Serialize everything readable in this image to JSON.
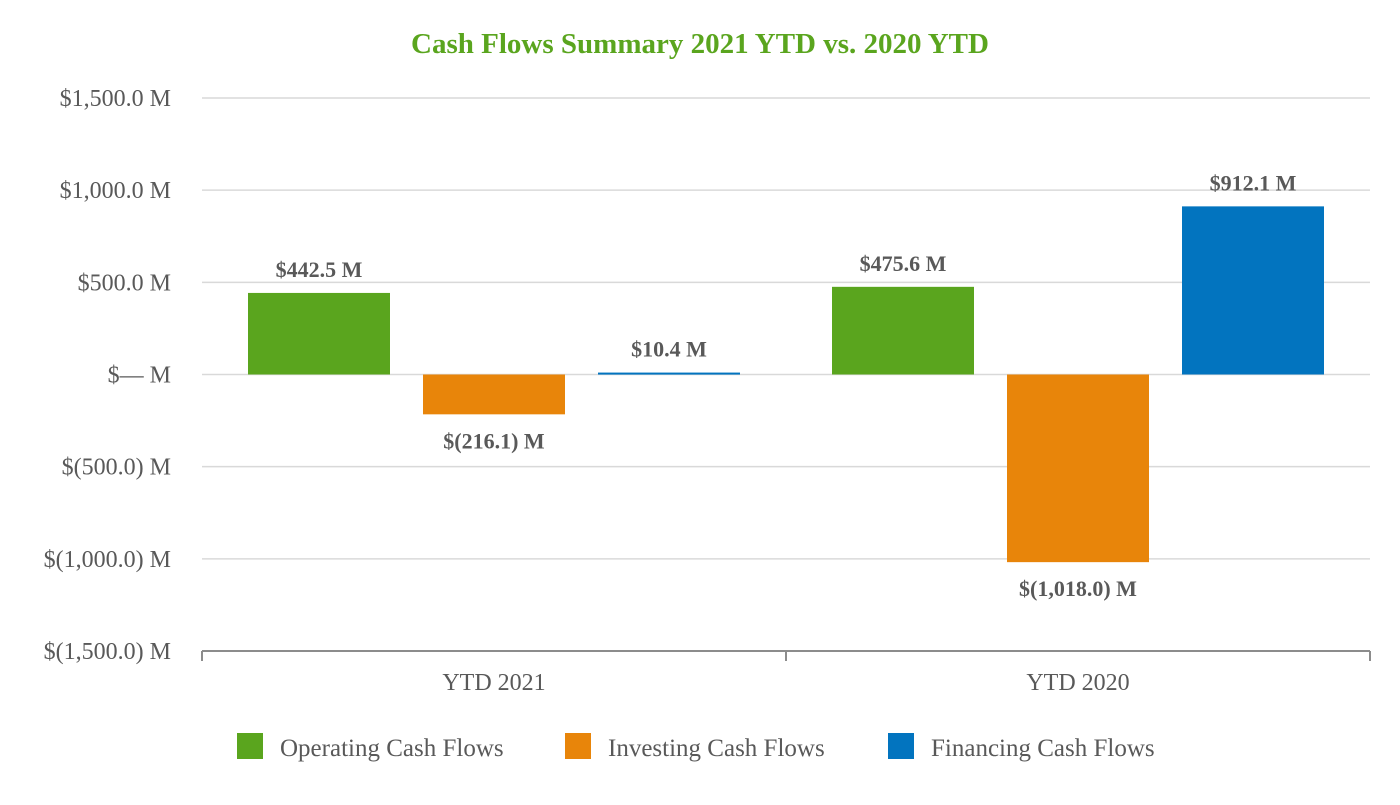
{
  "chart_data": {
    "type": "bar",
    "title": "Cash Flows Summary 2021 YTD vs. 2020 YTD",
    "title_color": "#5aa51e",
    "xlabel": "",
    "ylabel": "",
    "categories": [
      "YTD 2021",
      "YTD 2020"
    ],
    "series": [
      {
        "name": "Operating Cash Flows",
        "color": "#5aa51e",
        "values": [
          442.5,
          475.6
        ],
        "labels": [
          "$442.5 M",
          "$475.6 M"
        ]
      },
      {
        "name": "Investing Cash Flows",
        "color": "#e8850a",
        "values": [
          -216.1,
          -1018.0
        ],
        "labels": [
          "$(216.1) M",
          "$(1,018.0) M"
        ]
      },
      {
        "name": "Financing Cash Flows",
        "color": "#0274bf",
        "values": [
          10.4,
          912.1
        ],
        "labels": [
          "$10.4 M",
          "$912.1 M"
        ]
      }
    ],
    "ylim": [
      -1500,
      1500
    ],
    "yticks": [
      1500,
      1000,
      500,
      0,
      -500,
      -1000,
      -1500
    ],
    "ytick_labels": [
      "$1,500.0 M",
      "$1,000.0 M",
      "$500.0 M",
      "$— M",
      "$(500.0) M",
      "$(1,000.0) M",
      "$(1,500.0) M"
    ],
    "grid": true,
    "legend_position": "bottom"
  }
}
